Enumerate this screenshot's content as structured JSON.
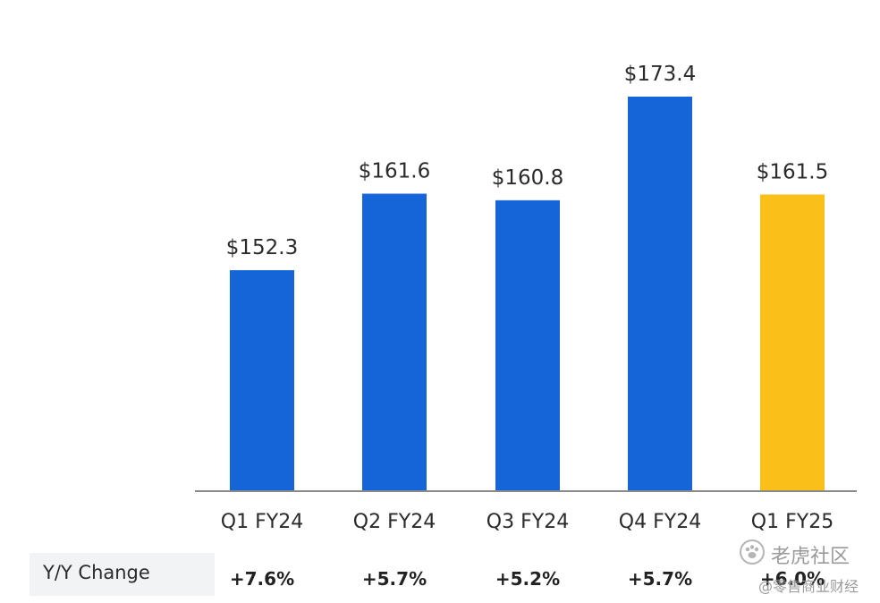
{
  "chart_data": {
    "type": "bar",
    "categories": [
      "Q1 FY24",
      "Q2 FY24",
      "Q3 FY24",
      "Q4 FY24",
      "Q1 FY25"
    ],
    "values": [
      152.3,
      161.6,
      160.8,
      173.4,
      161.5
    ],
    "value_labels": [
      "$152.3",
      "$161.6",
      "$160.8",
      "$173.4",
      "$161.5"
    ],
    "bar_colors": [
      "#1565d8",
      "#1565d8",
      "#1565d8",
      "#1565d8",
      "#fbbf1a"
    ],
    "title": "",
    "xlabel": "",
    "ylabel": "",
    "grid": false,
    "legend": "none"
  },
  "yy": {
    "label": "Y/Y Change",
    "values": [
      "+7.6%",
      "+5.7%",
      "+5.2%",
      "+5.7%",
      "+6.0%"
    ]
  },
  "watermark": {
    "top": "老虎社区",
    "bottom": "@零售商业财经"
  }
}
